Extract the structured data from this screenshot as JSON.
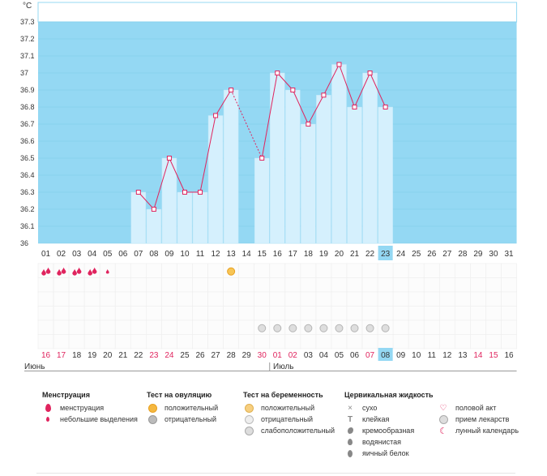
{
  "chart_data": {
    "type": "line",
    "unit": "°C",
    "yticks": [
      "37.3",
      "37.2",
      "37.1",
      "37",
      "36.9",
      "36.8",
      "36.7",
      "36.6",
      "36.5",
      "36.4",
      "36.3",
      "36.2",
      "36.1",
      "36"
    ],
    "ylim": [
      36,
      37.3
    ],
    "days": [
      "01",
      "02",
      "03",
      "04",
      "05",
      "06",
      "07",
      "08",
      "09",
      "10",
      "11",
      "12",
      "13",
      "14",
      "15",
      "16",
      "17",
      "18",
      "19",
      "20",
      "21",
      "22",
      "23",
      "24",
      "25",
      "26",
      "27",
      "28",
      "29",
      "30",
      "31"
    ],
    "today_index": 22,
    "values": [
      null,
      null,
      null,
      null,
      null,
      null,
      36.3,
      36.2,
      36.5,
      36.3,
      36.3,
      36.75,
      36.9,
      null,
      36.5,
      37.0,
      36.9,
      36.7,
      36.87,
      37.05,
      36.8,
      37.0,
      36.8,
      null,
      null,
      null,
      null,
      null,
      null,
      null,
      null
    ],
    "dashed_segment": [
      12,
      14
    ],
    "colors": {
      "background": "#94d8f3",
      "bar": "#d5f0fd",
      "line": "#e0245e",
      "today": "#94d8f3"
    }
  },
  "symptoms": {
    "menstruation": [
      0,
      1,
      2,
      3
    ],
    "light_spotting": [
      4
    ],
    "ovulation_positive": [
      12
    ],
    "pregnancy_faint": [
      14,
      15,
      16,
      17,
      18,
      19,
      20,
      21,
      22
    ]
  },
  "cycle_days": [
    "16",
    "17",
    "18",
    "19",
    "20",
    "21",
    "22",
    "23",
    "24",
    "25",
    "26",
    "27",
    "28",
    "29",
    "30",
    "01",
    "02",
    "03",
    "04",
    "05",
    "06",
    "07",
    "08",
    "09",
    "10",
    "11",
    "12",
    "13",
    "14",
    "15",
    "16"
  ],
  "cycle_red_indices": [
    0,
    1,
    7,
    8,
    14,
    15,
    16,
    21,
    28,
    29
  ],
  "months": {
    "first": "Июнь",
    "second": "Июль"
  },
  "legend": {
    "menstruation": {
      "title": "Менструация",
      "items": [
        "менструация",
        "небольшие выделения"
      ]
    },
    "ovulation": {
      "title": "Тест на овуляцию",
      "items": [
        "положительный",
        "отрицательный"
      ]
    },
    "pregnancy": {
      "title": "Тест на беременность",
      "items": [
        "положительный",
        "отрицательный",
        "слабоположительный"
      ]
    },
    "cervical": {
      "title": "Цервикальная жидкость",
      "items": [
        "сухо",
        "клейкая",
        "кремообразная",
        "водянистая",
        "яичный белок"
      ]
    },
    "other": {
      "items": [
        "половой акт",
        "прием лекарств",
        "лунный календарь"
      ]
    }
  }
}
